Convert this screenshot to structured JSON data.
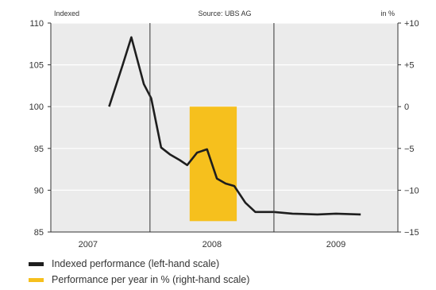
{
  "chart_data": {
    "type": "line",
    "header_left": "Indexed",
    "header_center": "Source: UBS AG",
    "header_right": "in %",
    "left_axis": {
      "min": 85,
      "max": 110,
      "ticks": [
        85,
        90,
        95,
        100,
        105,
        110
      ]
    },
    "right_axis": {
      "min": -15,
      "max": 10,
      "ticks": [
        -15,
        -10,
        -5,
        0,
        5,
        10
      ],
      "tick_labels": [
        "−15",
        "−10",
        "−5",
        "0",
        "+5",
        "+10"
      ]
    },
    "x_axis": {
      "start": 2006.7,
      "end": 2009.5,
      "dividers": [
        2007.5,
        2008.5
      ],
      "categories": [
        {
          "label": "2007",
          "at": 2007.0
        },
        {
          "label": "2008",
          "at": 2008.0
        },
        {
          "label": "2009",
          "at": 2009.0
        }
      ]
    },
    "grid": "horizontal",
    "series": [
      {
        "name": "Indexed performance (left-hand scale)",
        "axis": "left",
        "color": "#1e1e1e",
        "points": [
          [
            2007.17,
            100.0
          ],
          [
            2007.28,
            105.0
          ],
          [
            2007.35,
            108.3
          ],
          [
            2007.45,
            102.7
          ],
          [
            2007.51,
            101.0
          ],
          [
            2007.59,
            95.1
          ],
          [
            2007.66,
            94.3
          ],
          [
            2007.74,
            93.6
          ],
          [
            2007.8,
            93.0
          ],
          [
            2007.88,
            94.5
          ],
          [
            2007.96,
            94.9
          ],
          [
            2008.04,
            91.4
          ],
          [
            2008.11,
            90.8
          ],
          [
            2008.18,
            90.5
          ],
          [
            2008.27,
            88.5
          ],
          [
            2008.35,
            87.4
          ],
          [
            2008.5,
            87.4
          ],
          [
            2008.65,
            87.2
          ],
          [
            2008.85,
            87.1
          ],
          [
            2009.0,
            87.2
          ],
          [
            2009.2,
            87.1
          ]
        ]
      },
      {
        "name": "Performance per year in % (right-hand scale)",
        "axis": "right",
        "type": "bar",
        "color": "#f6c01d",
        "bars": [
          {
            "x_start": 2007.82,
            "x_end": 2008.2,
            "value": -13.7
          }
        ]
      }
    ],
    "legend_position": "bottom-left"
  }
}
